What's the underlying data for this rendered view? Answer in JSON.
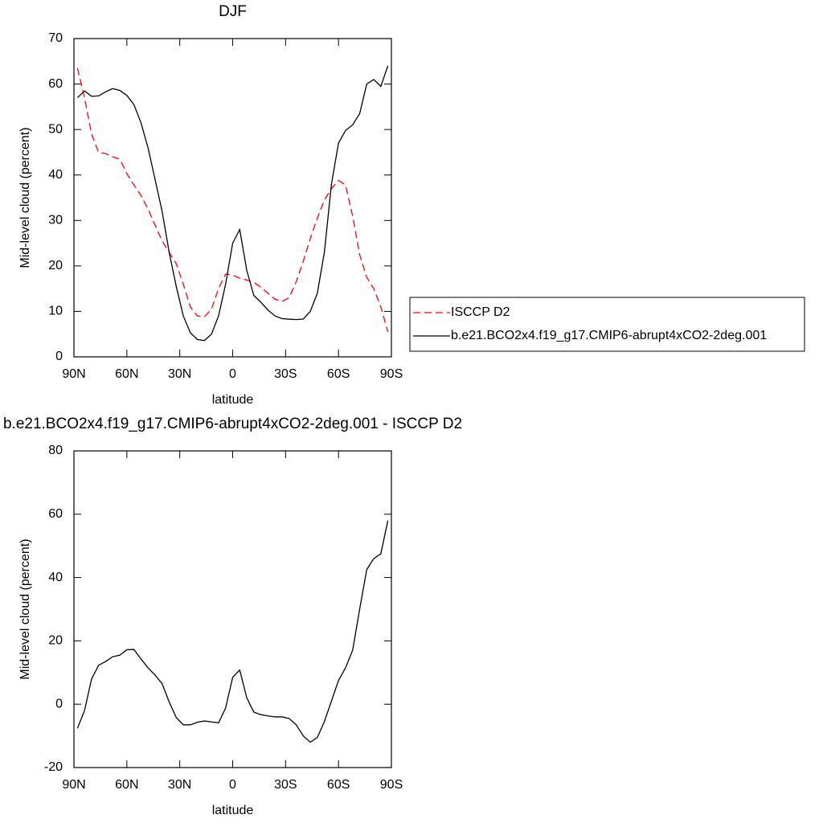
{
  "chart_data": [
    {
      "type": "line",
      "title": "DJF",
      "xlabel": "latitude",
      "ylabel": "Mid-level cloud (percent)",
      "xlim": [
        90,
        -90
      ],
      "xticks": [
        {
          "value": 90,
          "label": "90N"
        },
        {
          "value": 60,
          "label": "60N"
        },
        {
          "value": 30,
          "label": "30N"
        },
        0,
        {
          "value": -30,
          "label": "30S"
        },
        {
          "value": -60,
          "label": "60S"
        },
        {
          "value": -90,
          "label": "90S"
        }
      ],
      "ylim": [
        0,
        70
      ],
      "yticks": [
        0,
        10,
        20,
        30,
        40,
        50,
        60,
        70
      ],
      "legend": "right",
      "x": [
        88,
        84,
        80,
        76,
        72,
        68,
        64,
        60,
        56,
        52,
        48,
        44,
        40,
        36,
        32,
        28,
        24,
        20,
        16,
        12,
        8,
        4,
        0,
        -4,
        -8,
        -12,
        -16,
        -20,
        -24,
        -28,
        -32,
        -36,
        -40,
        -44,
        -48,
        -52,
        -56,
        -60,
        -64,
        -68,
        -72,
        -76,
        -80,
        -84,
        -88
      ],
      "series": [
        {
          "name": "ISCCP D2",
          "color": "#ff0000",
          "linestyle": "dashed",
          "values": [
            63.5,
            57,
            49,
            45,
            44.7,
            44,
            43.5,
            40.3,
            37.8,
            35.5,
            32.5,
            29,
            25.5,
            23,
            20.5,
            16,
            11,
            9,
            8.8,
            10.5,
            15,
            18.2,
            18,
            17.3,
            16.9,
            16.4,
            15.3,
            14,
            12.7,
            12.2,
            13,
            16.5,
            21,
            26,
            30.5,
            34.5,
            37,
            38.8,
            37.8,
            31,
            22.5,
            17.5,
            15,
            11,
            5.5
          ]
        },
        {
          "name": "b.e21.BCO2x4.f19_g17.CMIP6-abrupt4xCO2-2deg.001",
          "color": "#000000",
          "linestyle": "solid",
          "values": [
            57,
            58.5,
            57.3,
            57.4,
            58.3,
            59,
            58.6,
            57.5,
            55.5,
            51.5,
            46,
            39,
            32,
            23,
            15.5,
            9,
            5.3,
            3.8,
            3.6,
            5,
            9,
            16,
            25,
            28,
            19,
            13.5,
            12,
            10.3,
            9,
            8.4,
            8.3,
            8.2,
            8.3,
            10,
            14,
            23,
            38,
            47,
            49.8,
            51,
            53.5,
            60,
            61,
            59.5,
            64
          ]
        }
      ]
    },
    {
      "type": "line",
      "title": "b.e21.BCO2x4.f19_g17.CMIP6-abrupt4xCO2-2deg.001 - ISCCP D2",
      "xlabel": "latitude",
      "ylabel": "Mid-level cloud (percent)",
      "xlim": [
        90,
        -90
      ],
      "xticks": [
        {
          "value": 90,
          "label": "90N"
        },
        {
          "value": 60,
          "label": "60N"
        },
        {
          "value": 30,
          "label": "30N"
        },
        0,
        {
          "value": -30,
          "label": "30S"
        },
        {
          "value": -60,
          "label": "60S"
        },
        {
          "value": -90,
          "label": "90S"
        }
      ],
      "ylim": [
        -20,
        80
      ],
      "yticks": [
        -20,
        0,
        20,
        40,
        60,
        80
      ],
      "x": [
        88,
        84,
        80,
        76,
        72,
        68,
        64,
        60,
        56,
        52,
        48,
        44,
        40,
        36,
        32,
        28,
        24,
        20,
        16,
        12,
        8,
        4,
        0,
        -4,
        -8,
        -12,
        -16,
        -20,
        -24,
        -28,
        -32,
        -36,
        -40,
        -44,
        -48,
        -52,
        -56,
        -60,
        -64,
        -68,
        -72,
        -76,
        -80,
        -84,
        -88
      ],
      "series": [
        {
          "color": "#000000",
          "linestyle": "solid",
          "values": [
            -7.6,
            -2,
            8,
            12.3,
            13.5,
            15,
            15.5,
            17.2,
            17.3,
            14.3,
            11.5,
            9.2,
            6.5,
            0.7,
            -4.2,
            -6.5,
            -6.5,
            -5.7,
            -5.3,
            -5.6,
            -5.9,
            -1.2,
            8.5,
            10.8,
            2,
            -2.5,
            -3.3,
            -3.7,
            -4,
            -4,
            -4.5,
            -6.5,
            -10,
            -12,
            -10.5,
            -5.5,
            1,
            7.5,
            11.5,
            17,
            30,
            42.5,
            46,
            47.5,
            58
          ]
        }
      ]
    }
  ]
}
